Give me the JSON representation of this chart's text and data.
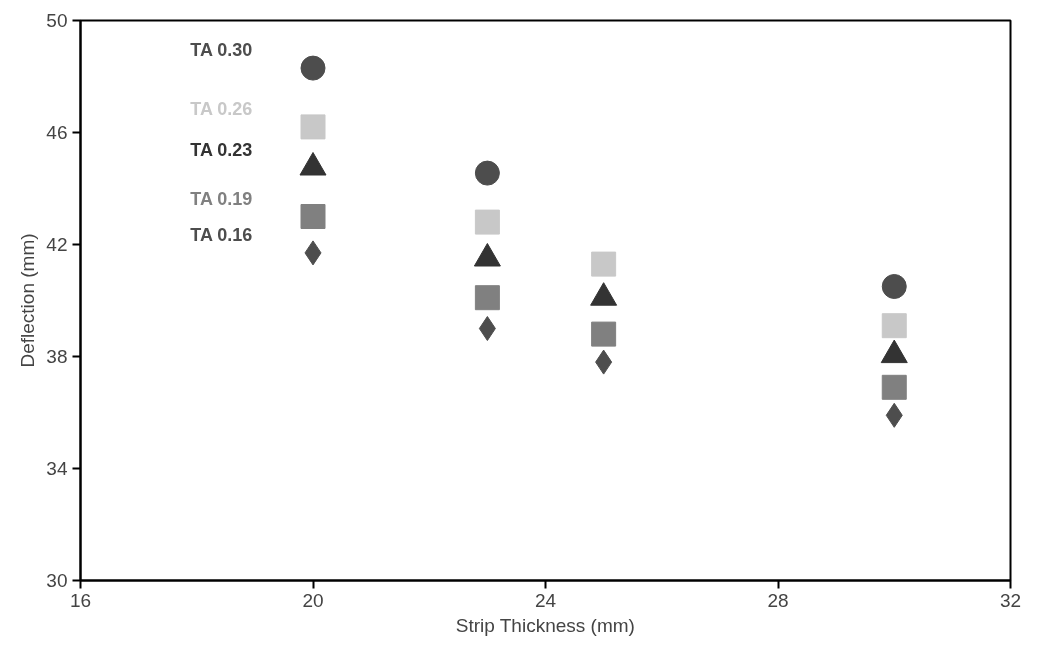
{
  "chart_data": {
    "type": "scatter",
    "xlabel": "Strip Thickness (mm)",
    "ylabel": "Deflection (mm)",
    "xlim": [
      16,
      32
    ],
    "xticks": [
      16,
      20,
      24,
      28,
      32
    ],
    "ylim": [
      30,
      50
    ],
    "yticks": [
      30,
      34,
      38,
      42,
      46,
      50
    ],
    "grid": false,
    "legend": false,
    "series": [
      {
        "name": "TA 0.30",
        "color": "#4d4d4d",
        "marker": "circle",
        "x": [
          20,
          23,
          30
        ],
        "values": [
          48.3,
          44.55,
          40.5
        ]
      },
      {
        "name": "TA 0.26",
        "color": "#c8c8c8",
        "marker": "square",
        "x": [
          20,
          23,
          25,
          30
        ],
        "values": [
          46.2,
          42.8,
          41.3,
          39.1
        ]
      },
      {
        "name": "TA 0.23",
        "color": "#333333",
        "marker": "triangle",
        "x": [
          20,
          23,
          25,
          30
        ],
        "values": [
          44.75,
          41.5,
          40.1,
          38.05
        ]
      },
      {
        "name": "TA 0.19",
        "color": "#808080",
        "marker": "square",
        "x": [
          20,
          23,
          25,
          30
        ],
        "values": [
          43.0,
          40.1,
          38.8,
          36.9
        ]
      },
      {
        "name": "TA 0.16",
        "color": "#4d4d4d",
        "marker": "diamond",
        "x": [
          20,
          23,
          25,
          30
        ],
        "values": [
          41.7,
          39.0,
          37.8,
          35.9
        ]
      }
    ]
  }
}
